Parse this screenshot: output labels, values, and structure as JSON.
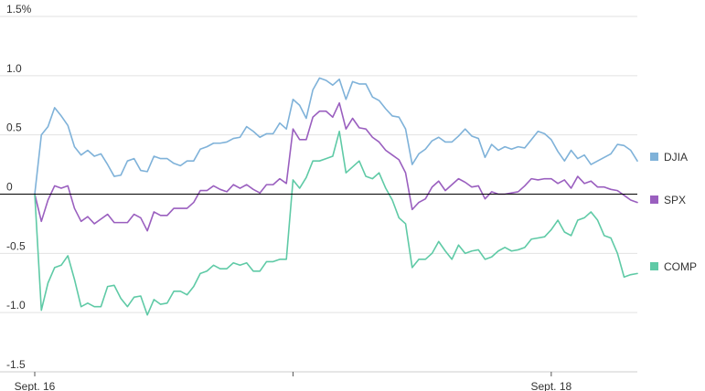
{
  "chart_data": {
    "type": "line",
    "title": "",
    "xlabel": "",
    "ylabel": "",
    "y_unit": "%",
    "ylim": [
      -1.5,
      1.5
    ],
    "y_ticks": [
      {
        "value": 1.5,
        "label": "1.5%"
      },
      {
        "value": 1.0,
        "label": "1.0"
      },
      {
        "value": 0.5,
        "label": "0.5"
      },
      {
        "value": 0,
        "label": "0"
      },
      {
        "value": -0.5,
        "label": "-0.5"
      },
      {
        "value": -1.0,
        "label": "-1.0"
      },
      {
        "value": -1.5,
        "label": "-1.5"
      }
    ],
    "x_ticks": [
      {
        "index": 0,
        "label": "Sept. 16"
      },
      {
        "index": 39,
        "label": ""
      },
      {
        "index": 78,
        "label": "Sept. 18"
      }
    ],
    "grid": "horizontal",
    "legend_placement": "right",
    "zero_line_color": "#000000",
    "series": [
      {
        "name": "DJIA",
        "color": "#7fb2d9",
        "values": [
          0.0,
          0.5,
          0.57,
          0.73,
          0.66,
          0.58,
          0.4,
          0.33,
          0.37,
          0.32,
          0.34,
          0.25,
          0.15,
          0.16,
          0.28,
          0.3,
          0.2,
          0.19,
          0.32,
          0.3,
          0.3,
          0.26,
          0.24,
          0.28,
          0.28,
          0.38,
          0.4,
          0.43,
          0.43,
          0.44,
          0.47,
          0.48,
          0.57,
          0.53,
          0.48,
          0.51,
          0.51,
          0.6,
          0.55,
          0.8,
          0.75,
          0.64,
          0.88,
          0.98,
          0.96,
          0.92,
          0.97,
          0.8,
          0.95,
          0.93,
          0.93,
          0.82,
          0.79,
          0.72,
          0.66,
          0.65,
          0.55,
          0.25,
          0.34,
          0.38,
          0.45,
          0.48,
          0.44,
          0.44,
          0.49,
          0.55,
          0.49,
          0.47,
          0.31,
          0.42,
          0.37,
          0.4,
          0.38,
          0.4,
          0.39,
          0.46,
          0.53,
          0.51,
          0.46,
          0.36,
          0.28,
          0.37,
          0.3,
          0.33,
          0.25,
          0.28,
          0.31,
          0.34,
          0.42,
          0.41,
          0.37,
          0.28
        ]
      },
      {
        "name": "SPX",
        "color": "#9a5fbf",
        "values": [
          0.0,
          -0.23,
          -0.05,
          0.07,
          0.05,
          0.07,
          -0.12,
          -0.23,
          -0.19,
          -0.25,
          -0.21,
          -0.17,
          -0.24,
          -0.24,
          -0.24,
          -0.17,
          -0.2,
          -0.31,
          -0.15,
          -0.18,
          -0.18,
          -0.12,
          -0.12,
          -0.12,
          -0.07,
          0.03,
          0.03,
          0.07,
          0.04,
          0.02,
          0.08,
          0.05,
          0.08,
          0.04,
          0.01,
          0.08,
          0.08,
          0.13,
          0.09,
          0.55,
          0.46,
          0.46,
          0.65,
          0.7,
          0.7,
          0.65,
          0.77,
          0.55,
          0.64,
          0.56,
          0.55,
          0.48,
          0.44,
          0.37,
          0.33,
          0.29,
          0.18,
          -0.13,
          -0.07,
          -0.04,
          0.06,
          0.11,
          0.03,
          0.08,
          0.13,
          0.1,
          0.06,
          0.07,
          -0.04,
          0.02,
          0.0,
          0.0,
          0.01,
          0.02,
          0.07,
          0.13,
          0.12,
          0.13,
          0.13,
          0.09,
          0.12,
          0.05,
          0.15,
          0.09,
          0.11,
          0.06,
          0.06,
          0.04,
          0.03,
          -0.01,
          -0.05,
          -0.07
        ]
      },
      {
        "name": "COMP",
        "color": "#5fcaa6",
        "values": [
          0.0,
          -0.98,
          -0.75,
          -0.62,
          -0.6,
          -0.52,
          -0.72,
          -0.95,
          -0.92,
          -0.95,
          -0.95,
          -0.78,
          -0.77,
          -0.88,
          -0.95,
          -0.87,
          -0.86,
          -1.02,
          -0.89,
          -0.93,
          -0.92,
          -0.82,
          -0.82,
          -0.85,
          -0.78,
          -0.67,
          -0.65,
          -0.6,
          -0.63,
          -0.63,
          -0.58,
          -0.6,
          -0.58,
          -0.65,
          -0.65,
          -0.57,
          -0.57,
          -0.55,
          -0.55,
          0.12,
          0.05,
          0.14,
          0.28,
          0.28,
          0.3,
          0.32,
          0.53,
          0.18,
          0.23,
          0.28,
          0.15,
          0.13,
          0.18,
          0.05,
          -0.05,
          -0.2,
          -0.25,
          -0.62,
          -0.55,
          -0.55,
          -0.5,
          -0.4,
          -0.48,
          -0.55,
          -0.43,
          -0.5,
          -0.48,
          -0.47,
          -0.55,
          -0.53,
          -0.48,
          -0.45,
          -0.48,
          -0.47,
          -0.45,
          -0.38,
          -0.37,
          -0.36,
          -0.3,
          -0.22,
          -0.32,
          -0.35,
          -0.22,
          -0.2,
          -0.15,
          -0.22,
          -0.35,
          -0.37,
          -0.5,
          -0.7,
          -0.68,
          -0.67
        ]
      }
    ]
  }
}
